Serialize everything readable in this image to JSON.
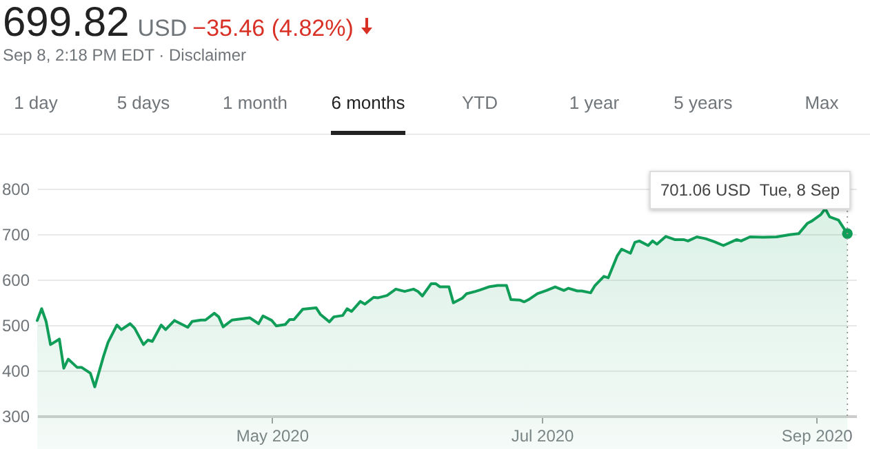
{
  "chart_data": {
    "type": "area",
    "title": "699.82",
    "annotations": [
      "USD",
      "−35.46 (4.82%)",
      "Sep 8, 2:18 PM EDT · Disclaimer",
      "1 day",
      "5 days",
      "1 month",
      "6 months",
      "YTD",
      "1 year",
      "5 years",
      "Max",
      {
        "text": "701.06 USD  Tue, 8 Sep",
        "x": "2020-09-08",
        "y": 701.06
      }
    ],
    "x": [
      "2020-03-09",
      "2020-03-10",
      "2020-03-11",
      "2020-03-12",
      "2020-03-14",
      "2020-03-15",
      "2020-03-16",
      "2020-03-18",
      "2020-03-19",
      "2020-03-21",
      "2020-03-22",
      "2020-03-24",
      "2020-03-25",
      "2020-03-27",
      "2020-03-28",
      "2020-03-30",
      "2020-03-31",
      "2020-04-02",
      "2020-04-03",
      "2020-04-04",
      "2020-04-06",
      "2020-04-07",
      "2020-04-09",
      "2020-04-10",
      "2020-04-12",
      "2020-04-13",
      "2020-04-15",
      "2020-04-16",
      "2020-04-18",
      "2020-04-19",
      "2020-04-20",
      "2020-04-22",
      "2020-04-26",
      "2020-04-28",
      "2020-04-29",
      "2020-05-01",
      "2020-05-02",
      "2020-05-04",
      "2020-05-05",
      "2020-05-06",
      "2020-05-08",
      "2020-05-11",
      "2020-05-12",
      "2020-05-14",
      "2020-05-15",
      "2020-05-17",
      "2020-05-18",
      "2020-05-19",
      "2020-05-21",
      "2020-05-22",
      "2020-05-24",
      "2020-05-25",
      "2020-05-27",
      "2020-05-29",
      "2020-05-31",
      "2020-06-02",
      "2020-06-03",
      "2020-06-04",
      "2020-06-06",
      "2020-06-07",
      "2020-06-08",
      "2020-06-10",
      "2020-06-11",
      "2020-06-13",
      "2020-06-14",
      "2020-06-16",
      "2020-06-17",
      "2020-06-19",
      "2020-06-21",
      "2020-06-23",
      "2020-06-24",
      "2020-06-26",
      "2020-06-27",
      "2020-06-28",
      "2020-06-30",
      "2020-07-02",
      "2020-07-04",
      "2020-07-06",
      "2020-07-07",
      "2020-07-09",
      "2020-07-10",
      "2020-07-12",
      "2020-07-13",
      "2020-07-15",
      "2020-07-16",
      "2020-07-18",
      "2020-07-19",
      "2020-07-21",
      "2020-07-22",
      "2020-07-23",
      "2020-07-25",
      "2020-07-26",
      "2020-07-27",
      "2020-07-29",
      "2020-07-31",
      "2020-08-02",
      "2020-08-03",
      "2020-08-05",
      "2020-08-07",
      "2020-08-09",
      "2020-08-11",
      "2020-08-14",
      "2020-08-15",
      "2020-08-17",
      "2020-08-20",
      "2020-08-23",
      "2020-08-26",
      "2020-08-28",
      "2020-08-30",
      "2020-08-31",
      "2020-09-02",
      "2020-09-03",
      "2020-09-04",
      "2020-09-06",
      "2020-09-08"
    ],
    "series": [
      {
        "color": "#0f9d58",
        "values": [
          510,
          536,
          508,
          457,
          469,
          405,
          425,
          407,
          407,
          394,
          364,
          432,
          462,
          500,
          490,
          503,
          493,
          457,
          467,
          464,
          500,
          490,
          510,
          505,
          495,
          508,
          511,
          511,
          526,
          518,
          496,
          511,
          516,
          503,
          520,
          510,
          498,
          501,
          512,
          512,
          535,
          538,
          523,
          507,
          518,
          521,
          536,
          530,
          552,
          546,
          561,
          560,
          565,
          579,
          574,
          579,
          574,
          564,
          591,
          591,
          584,
          584,
          549,
          559,
          569,
          574,
          577,
          584,
          587,
          587,
          556,
          555,
          551,
          556,
          569,
          576,
          584,
          576,
          581,
          575,
          575,
          571,
          587,
          607,
          604,
          652,
          667,
          658,
          682,
          685,
          675,
          685,
          678,
          695,
          688,
          688,
          685,
          694,
          690,
          683,
          675,
          688,
          685,
          694,
          693,
          694,
          699,
          701,
          724,
          729,
          743,
          756,
          738,
          731,
          701
        ]
      }
    ],
    "xlim": [
      "2020-03-09",
      "2020-09-10"
    ],
    "xticks": [
      {
        "value": "2020-05-01",
        "label": "May 2020"
      },
      {
        "value": "2020-07-01",
        "label": "Jul 2020"
      },
      {
        "value": "2020-09-01",
        "label": "Sep 2020"
      }
    ],
    "ylim": [
      300,
      800
    ],
    "yticks": [
      300,
      400,
      500,
      600,
      700,
      800
    ],
    "ref_lines": [
      {
        "axis": "x",
        "value": "2020-09-08",
        "color": "#999999",
        "line_style": "dotted"
      }
    ],
    "grid": "y",
    "marker": "none",
    "line_style": "solid"
  }
}
